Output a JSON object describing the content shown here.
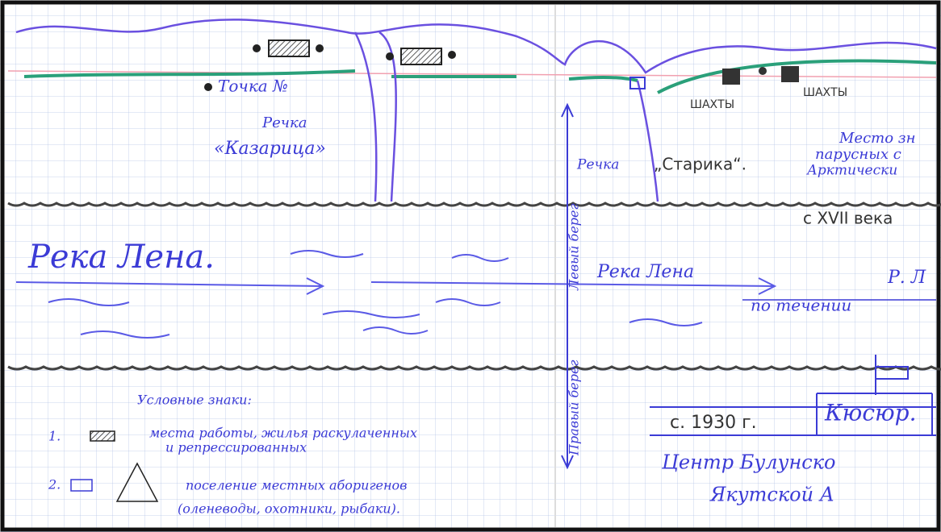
{
  "map": {
    "left": {
      "point_label": "Точка №",
      "creek_label": "Речка",
      "creek_name": "«Казарица»",
      "river_label": "Река Лена."
    },
    "right": {
      "mines": [
        "ШАХТЫ",
        "ШАХТЫ"
      ],
      "creek_label": "Речка",
      "creek_name": "„Старика“.",
      "place_note": [
        "Место зн",
        "парусных с",
        "Арктически"
      ],
      "century_note": "с XVII века",
      "left_bank": "Левый берег",
      "right_bank": "Правый берег",
      "river_label": "Река Лена",
      "river_label_2": "Р. Л",
      "flow_note": "по течении",
      "village_year": "с. 1930 г.",
      "village_name": "Кюсюр.",
      "district_note": [
        "Центр Булунско",
        "Якутской А"
      ]
    },
    "legend": {
      "title": "Условные знаки:",
      "items": [
        {
          "number": "1.",
          "text": [
            "места работы, жилья раскулаченных",
            "и репрессированных"
          ]
        },
        {
          "number": "2.",
          "text": [
            "поселение местных аборигенов",
            "(оленеводы, охотники, рыбаки)."
          ]
        }
      ]
    }
  }
}
